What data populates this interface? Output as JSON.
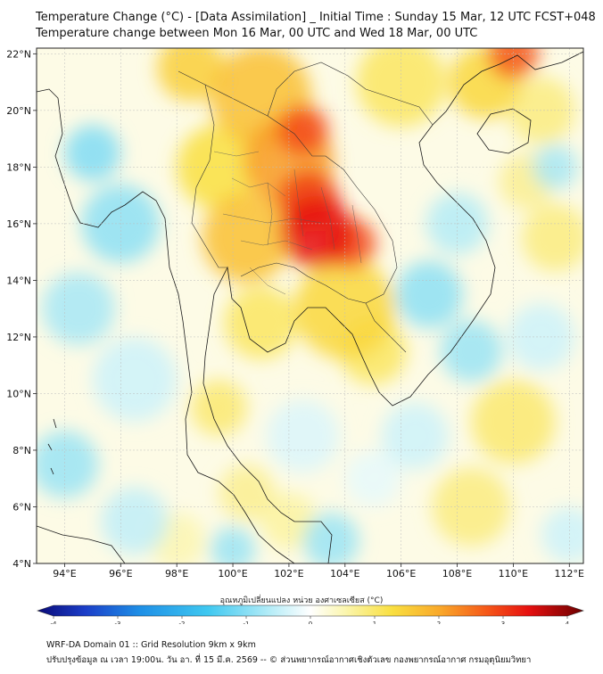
{
  "header": {
    "title_line1": "Temperature Change (°C) - [Data Assimilation] _ Initial Time : Sunday 15 Mar, 12 UTC FCST+048",
    "title_line2": "Temperature change between Mon 16 Mar, 00 UTC and Wed 18 Mar, 00 UTC"
  },
  "map": {
    "lon_range": [
      93,
      112.5
    ],
    "lat_range": [
      4,
      22.2
    ],
    "lon_ticks": [
      {
        "v": 94,
        "label": "94°E"
      },
      {
        "v": 96,
        "label": "96°E"
      },
      {
        "v": 98,
        "label": "98°E"
      },
      {
        "v": 100,
        "label": "100°E"
      },
      {
        "v": 102,
        "label": "102°E"
      },
      {
        "v": 104,
        "label": "104°E"
      },
      {
        "v": 106,
        "label": "106°E"
      },
      {
        "v": 108,
        "label": "108°E"
      },
      {
        "v": 110,
        "label": "110°E"
      },
      {
        "v": 112,
        "label": "112°E"
      }
    ],
    "lat_ticks": [
      {
        "v": 4,
        "label": "4°N"
      },
      {
        "v": 6,
        "label": "6°N"
      },
      {
        "v": 8,
        "label": "8°N"
      },
      {
        "v": 10,
        "label": "10°N"
      },
      {
        "v": 12,
        "label": "12°N"
      },
      {
        "v": 14,
        "label": "14°N"
      },
      {
        "v": 16,
        "label": "16°N"
      },
      {
        "v": 18,
        "label": "18°N"
      },
      {
        "v": 20,
        "label": "20°N"
      },
      {
        "v": 22,
        "label": "22°N"
      }
    ],
    "grid": true,
    "field_blobs": [
      {
        "lon": 103.0,
        "lat": 15.7,
        "r": 1.3,
        "value": 3.2
      },
      {
        "lon": 102.7,
        "lat": 16.8,
        "r": 1.1,
        "value": 2.8
      },
      {
        "lon": 104.2,
        "lat": 15.3,
        "r": 0.9,
        "value": 2.7
      },
      {
        "lon": 102.5,
        "lat": 19.3,
        "r": 0.9,
        "value": 2.7
      },
      {
        "lon": 102.0,
        "lat": 18.2,
        "r": 1.6,
        "value": 2.0
      },
      {
        "lon": 100.5,
        "lat": 15.5,
        "r": 1.6,
        "value": 1.6
      },
      {
        "lon": 101.0,
        "lat": 20.5,
        "r": 1.8,
        "value": 1.6
      },
      {
        "lon": 99.5,
        "lat": 18.0,
        "r": 1.5,
        "value": 1.2
      },
      {
        "lon": 104.0,
        "lat": 13.0,
        "r": 1.8,
        "value": 1.3
      },
      {
        "lon": 101.0,
        "lat": 12.5,
        "r": 1.3,
        "value": 1.0
      },
      {
        "lon": 105.0,
        "lat": 11.5,
        "r": 1.2,
        "value": 1.0
      },
      {
        "lon": 98.5,
        "lat": 21.5,
        "r": 1.2,
        "value": 1.4
      },
      {
        "lon": 106.0,
        "lat": 21.0,
        "r": 1.6,
        "value": 1.0
      },
      {
        "lon": 110.0,
        "lat": 22.0,
        "r": 0.9,
        "value": 2.6
      },
      {
        "lon": 109.0,
        "lat": 21.0,
        "r": 1.3,
        "value": 1.3
      },
      {
        "lon": 111.0,
        "lat": 20.0,
        "r": 1.2,
        "value": 0.8
      },
      {
        "lon": 110.5,
        "lat": 17.5,
        "r": 1.0,
        "value": 0.7
      },
      {
        "lon": 111.5,
        "lat": 15.5,
        "r": 1.2,
        "value": 0.8
      },
      {
        "lon": 110.0,
        "lat": 9.0,
        "r": 1.5,
        "value": 0.9
      },
      {
        "lon": 108.5,
        "lat": 6.0,
        "r": 1.4,
        "value": 0.8
      },
      {
        "lon": 99.5,
        "lat": 9.5,
        "r": 1.0,
        "value": 0.9
      },
      {
        "lon": 100.5,
        "lat": 6.5,
        "r": 1.0,
        "value": 0.7
      },
      {
        "lon": 102.0,
        "lat": 5.5,
        "r": 1.0,
        "value": 0.6
      },
      {
        "lon": 98.0,
        "lat": 4.8,
        "r": 1.0,
        "value": 0.5
      },
      {
        "lon": 96.0,
        "lat": 16.0,
        "r": 1.4,
        "value": -0.9
      },
      {
        "lon": 95.0,
        "lat": 18.5,
        "r": 1.0,
        "value": -1.0
      },
      {
        "lon": 94.5,
        "lat": 13.0,
        "r": 1.3,
        "value": -0.7
      },
      {
        "lon": 96.5,
        "lat": 10.5,
        "r": 1.5,
        "value": -0.4
      },
      {
        "lon": 94.0,
        "lat": 7.5,
        "r": 1.2,
        "value": -0.8
      },
      {
        "lon": 96.5,
        "lat": 5.5,
        "r": 1.2,
        "value": -0.5
      },
      {
        "lon": 100.0,
        "lat": 4.5,
        "r": 0.8,
        "value": -0.8
      },
      {
        "lon": 103.5,
        "lat": 4.8,
        "r": 1.0,
        "value": -0.8
      },
      {
        "lon": 102.5,
        "lat": 8.5,
        "r": 1.3,
        "value": -0.3
      },
      {
        "lon": 107.0,
        "lat": 13.5,
        "r": 1.2,
        "value": -0.9
      },
      {
        "lon": 108.5,
        "lat": 11.5,
        "r": 1.1,
        "value": -0.8
      },
      {
        "lon": 108.0,
        "lat": 16.0,
        "r": 1.1,
        "value": -0.6
      },
      {
        "lon": 111.5,
        "lat": 18.0,
        "r": 0.8,
        "value": -0.7
      },
      {
        "lon": 106.5,
        "lat": 8.5,
        "r": 1.2,
        "value": -0.4
      },
      {
        "lon": 111.0,
        "lat": 12.0,
        "r": 1.2,
        "value": -0.4
      },
      {
        "lon": 112.0,
        "lat": 5.0,
        "r": 1.0,
        "value": -0.4
      },
      {
        "lon": 105.0,
        "lat": 7.0,
        "r": 1.0,
        "value": -0.2
      }
    ]
  },
  "colorbar": {
    "label": "อุณหภูมิเปลี่ยนแปลง หน่วย องศาเซลเซียส (°C)",
    "min": -4,
    "max": 4,
    "ticks": [
      {
        "v": -4,
        "label": "-4"
      },
      {
        "v": -3,
        "label": "-3"
      },
      {
        "v": -2,
        "label": "-2"
      },
      {
        "v": -1,
        "label": "-1"
      },
      {
        "v": 0,
        "label": "0"
      },
      {
        "v": 1,
        "label": "1"
      },
      {
        "v": 2,
        "label": "2"
      },
      {
        "v": 3,
        "label": "3"
      },
      {
        "v": 4,
        "label": "4"
      }
    ],
    "stops": [
      {
        "v": -4,
        "color": "#0a0a78"
      },
      {
        "v": -3.3,
        "color": "#1b3ec8"
      },
      {
        "v": -2.5,
        "color": "#1e8fe6"
      },
      {
        "v": -1.5,
        "color": "#3fc8f0"
      },
      {
        "v": -0.6,
        "color": "#b4ecf7"
      },
      {
        "v": 0,
        "color": "#ffffff"
      },
      {
        "v": 0.5,
        "color": "#fbf6b0"
      },
      {
        "v": 1.2,
        "color": "#f9df40"
      },
      {
        "v": 1.9,
        "color": "#f9a82a"
      },
      {
        "v": 2.6,
        "color": "#f55618"
      },
      {
        "v": 3.2,
        "color": "#e61010"
      },
      {
        "v": 4,
        "color": "#6b0000"
      }
    ]
  },
  "footer": {
    "line1": "WRF-DA Domain 01 :: Grid Resolution 9km x 9km",
    "line2": "ปรับปรุงข้อมูล ณ เวลา 19:00น. วัน อา. ที่ 15 มี.ค. 2569 -- © ส่วนพยากรณ์อากาศเชิงตัวเลข กองพยากรณ์อากาศ กรมอุตุนิยมวิทยา"
  }
}
